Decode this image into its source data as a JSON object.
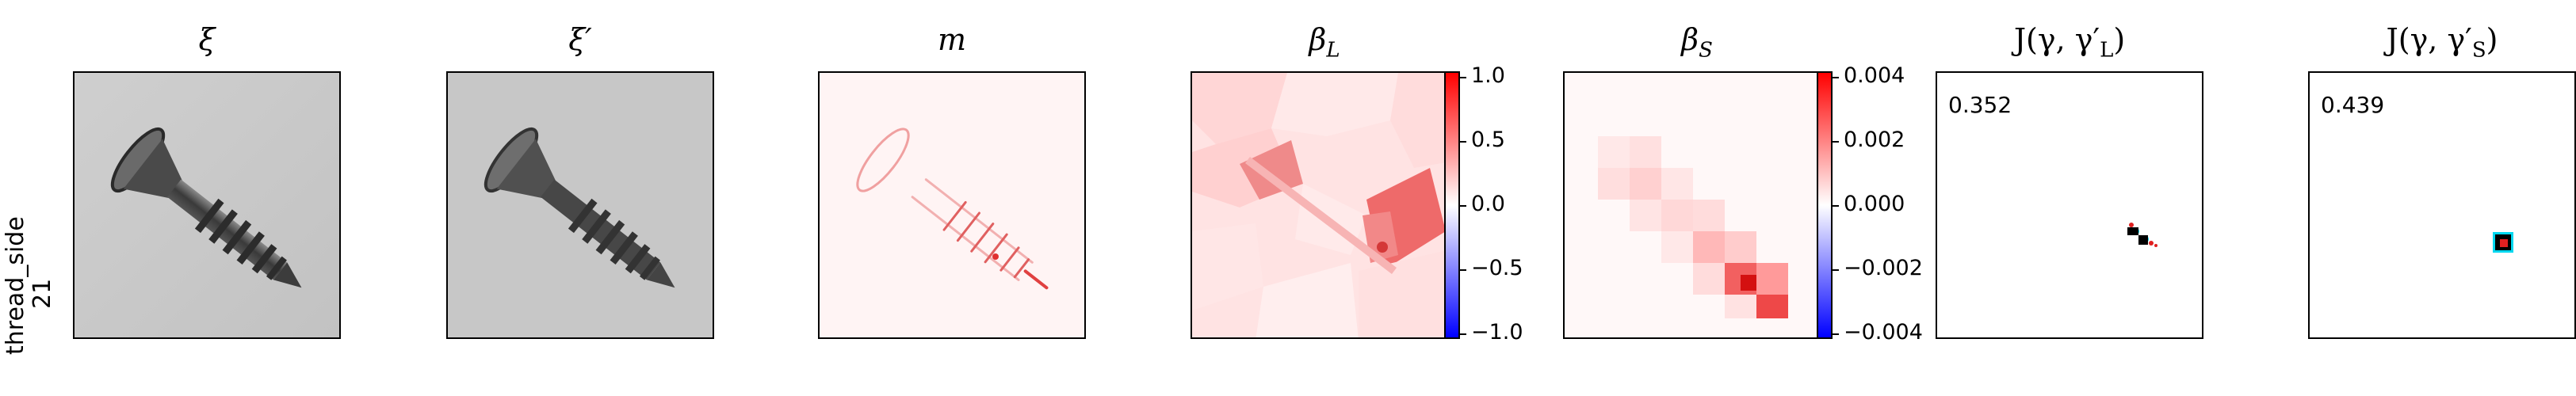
{
  "row_label": {
    "line1": "thread_side",
    "line2": "21"
  },
  "panels": [
    {
      "id": "xi",
      "title": "ξ"
    },
    {
      "id": "xi_prime",
      "title": "ξ′"
    },
    {
      "id": "m",
      "title": "m"
    },
    {
      "id": "beta_L",
      "title": "β",
      "sub": "L"
    },
    {
      "id": "beta_S",
      "title": "β",
      "sub": "S"
    },
    {
      "id": "J_L",
      "title": "J(γ, γ′",
      "sub": "L",
      "close": ")",
      "score": "0.352"
    },
    {
      "id": "J_S",
      "title": "J(γ, γ′",
      "sub": "S",
      "close": ")",
      "score": "0.439"
    }
  ],
  "colorbar_L": {
    "ticks": [
      "1.0",
      "0.5",
      "0.0",
      "−0.5",
      "−1.0"
    ]
  },
  "colorbar_S": {
    "ticks": [
      "0.004",
      "0.002",
      "0.000",
      "−0.002",
      "−0.004"
    ]
  },
  "colors": {
    "positive": "#ff0000",
    "neutral": "#ffffff",
    "negative": "#0000ff",
    "cyan": "#00e5ff"
  }
}
